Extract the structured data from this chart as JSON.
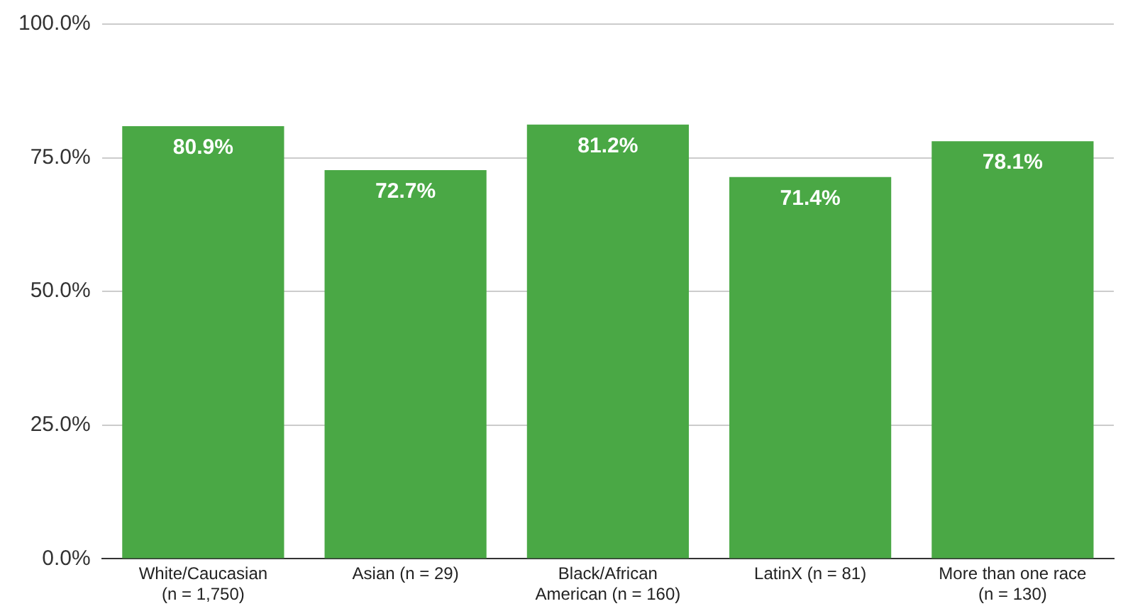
{
  "chart_data": {
    "type": "bar",
    "categories": [
      "White/Caucasian\n(n = 1,750)",
      "Asian (n = 29)",
      "Black/African\nAmerican (n = 160)",
      "LatinX (n = 81)",
      "More than one race\n(n = 130)"
    ],
    "values": [
      80.9,
      72.7,
      81.2,
      71.4,
      78.1
    ],
    "value_labels": [
      "80.9%",
      "72.7%",
      "81.2%",
      "71.4%",
      "78.1%"
    ],
    "color": "#4aa845",
    "ylim": [
      0,
      100
    ],
    "yticks": [
      {
        "value": 0,
        "label": "0.0%"
      },
      {
        "value": 25,
        "label": "25.0%"
      },
      {
        "value": 50,
        "label": "50.0%"
      },
      {
        "value": 75,
        "label": "75.0%"
      },
      {
        "value": 100,
        "label": "100.0%"
      }
    ],
    "grid": "y",
    "legend": false
  }
}
